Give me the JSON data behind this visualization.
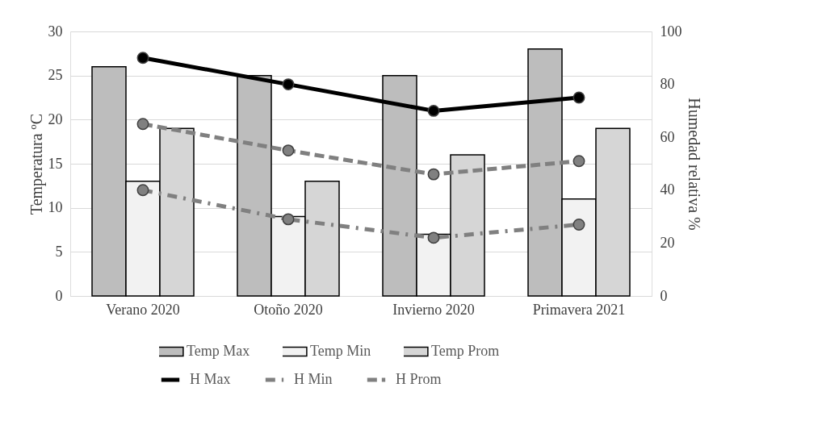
{
  "chart_data": {
    "type": "bar",
    "categories": [
      "Verano 2020",
      "Otoño 2020",
      "Invierno 2020",
      "Primavera 2021"
    ],
    "ylabel": "Temperatura ºC",
    "y2label": "Humedad relativa %",
    "series": [
      {
        "name": "Temp Max",
        "color": "#bdbdbd",
        "values": [
          26,
          25,
          25,
          28
        ]
      },
      {
        "name": "Temp Min",
        "color": "#f2f2f2",
        "values": [
          13,
          9,
          7,
          11
        ]
      },
      {
        "name": "Temp Prom",
        "color": "#d6d6d6",
        "values": [
          19,
          13,
          16,
          19
        ]
      },
      {
        "name": "H Max",
        "type": "line",
        "axis": "y2",
        "color": "#000000",
        "line_style": "solid",
        "values": [
          90,
          80,
          70,
          75
        ]
      },
      {
        "name": "H Min",
        "type": "line",
        "axis": "y2",
        "color": "#808080",
        "line_style": "dashdot",
        "values": [
          40,
          29,
          22,
          27
        ]
      },
      {
        "name": "H Prom",
        "type": "line",
        "axis": "y2",
        "color": "#808080",
        "line_style": "dashed",
        "values": [
          65,
          55,
          46,
          51
        ]
      }
    ],
    "ylim": [
      0,
      30
    ],
    "yticks": [
      0,
      5,
      10,
      15,
      20,
      25,
      30
    ],
    "y2lim": [
      0,
      100
    ],
    "y2ticks": [
      0,
      20,
      40,
      60,
      80,
      100
    ],
    "grid": "y",
    "legend": "bottom",
    "marker": "circle"
  }
}
